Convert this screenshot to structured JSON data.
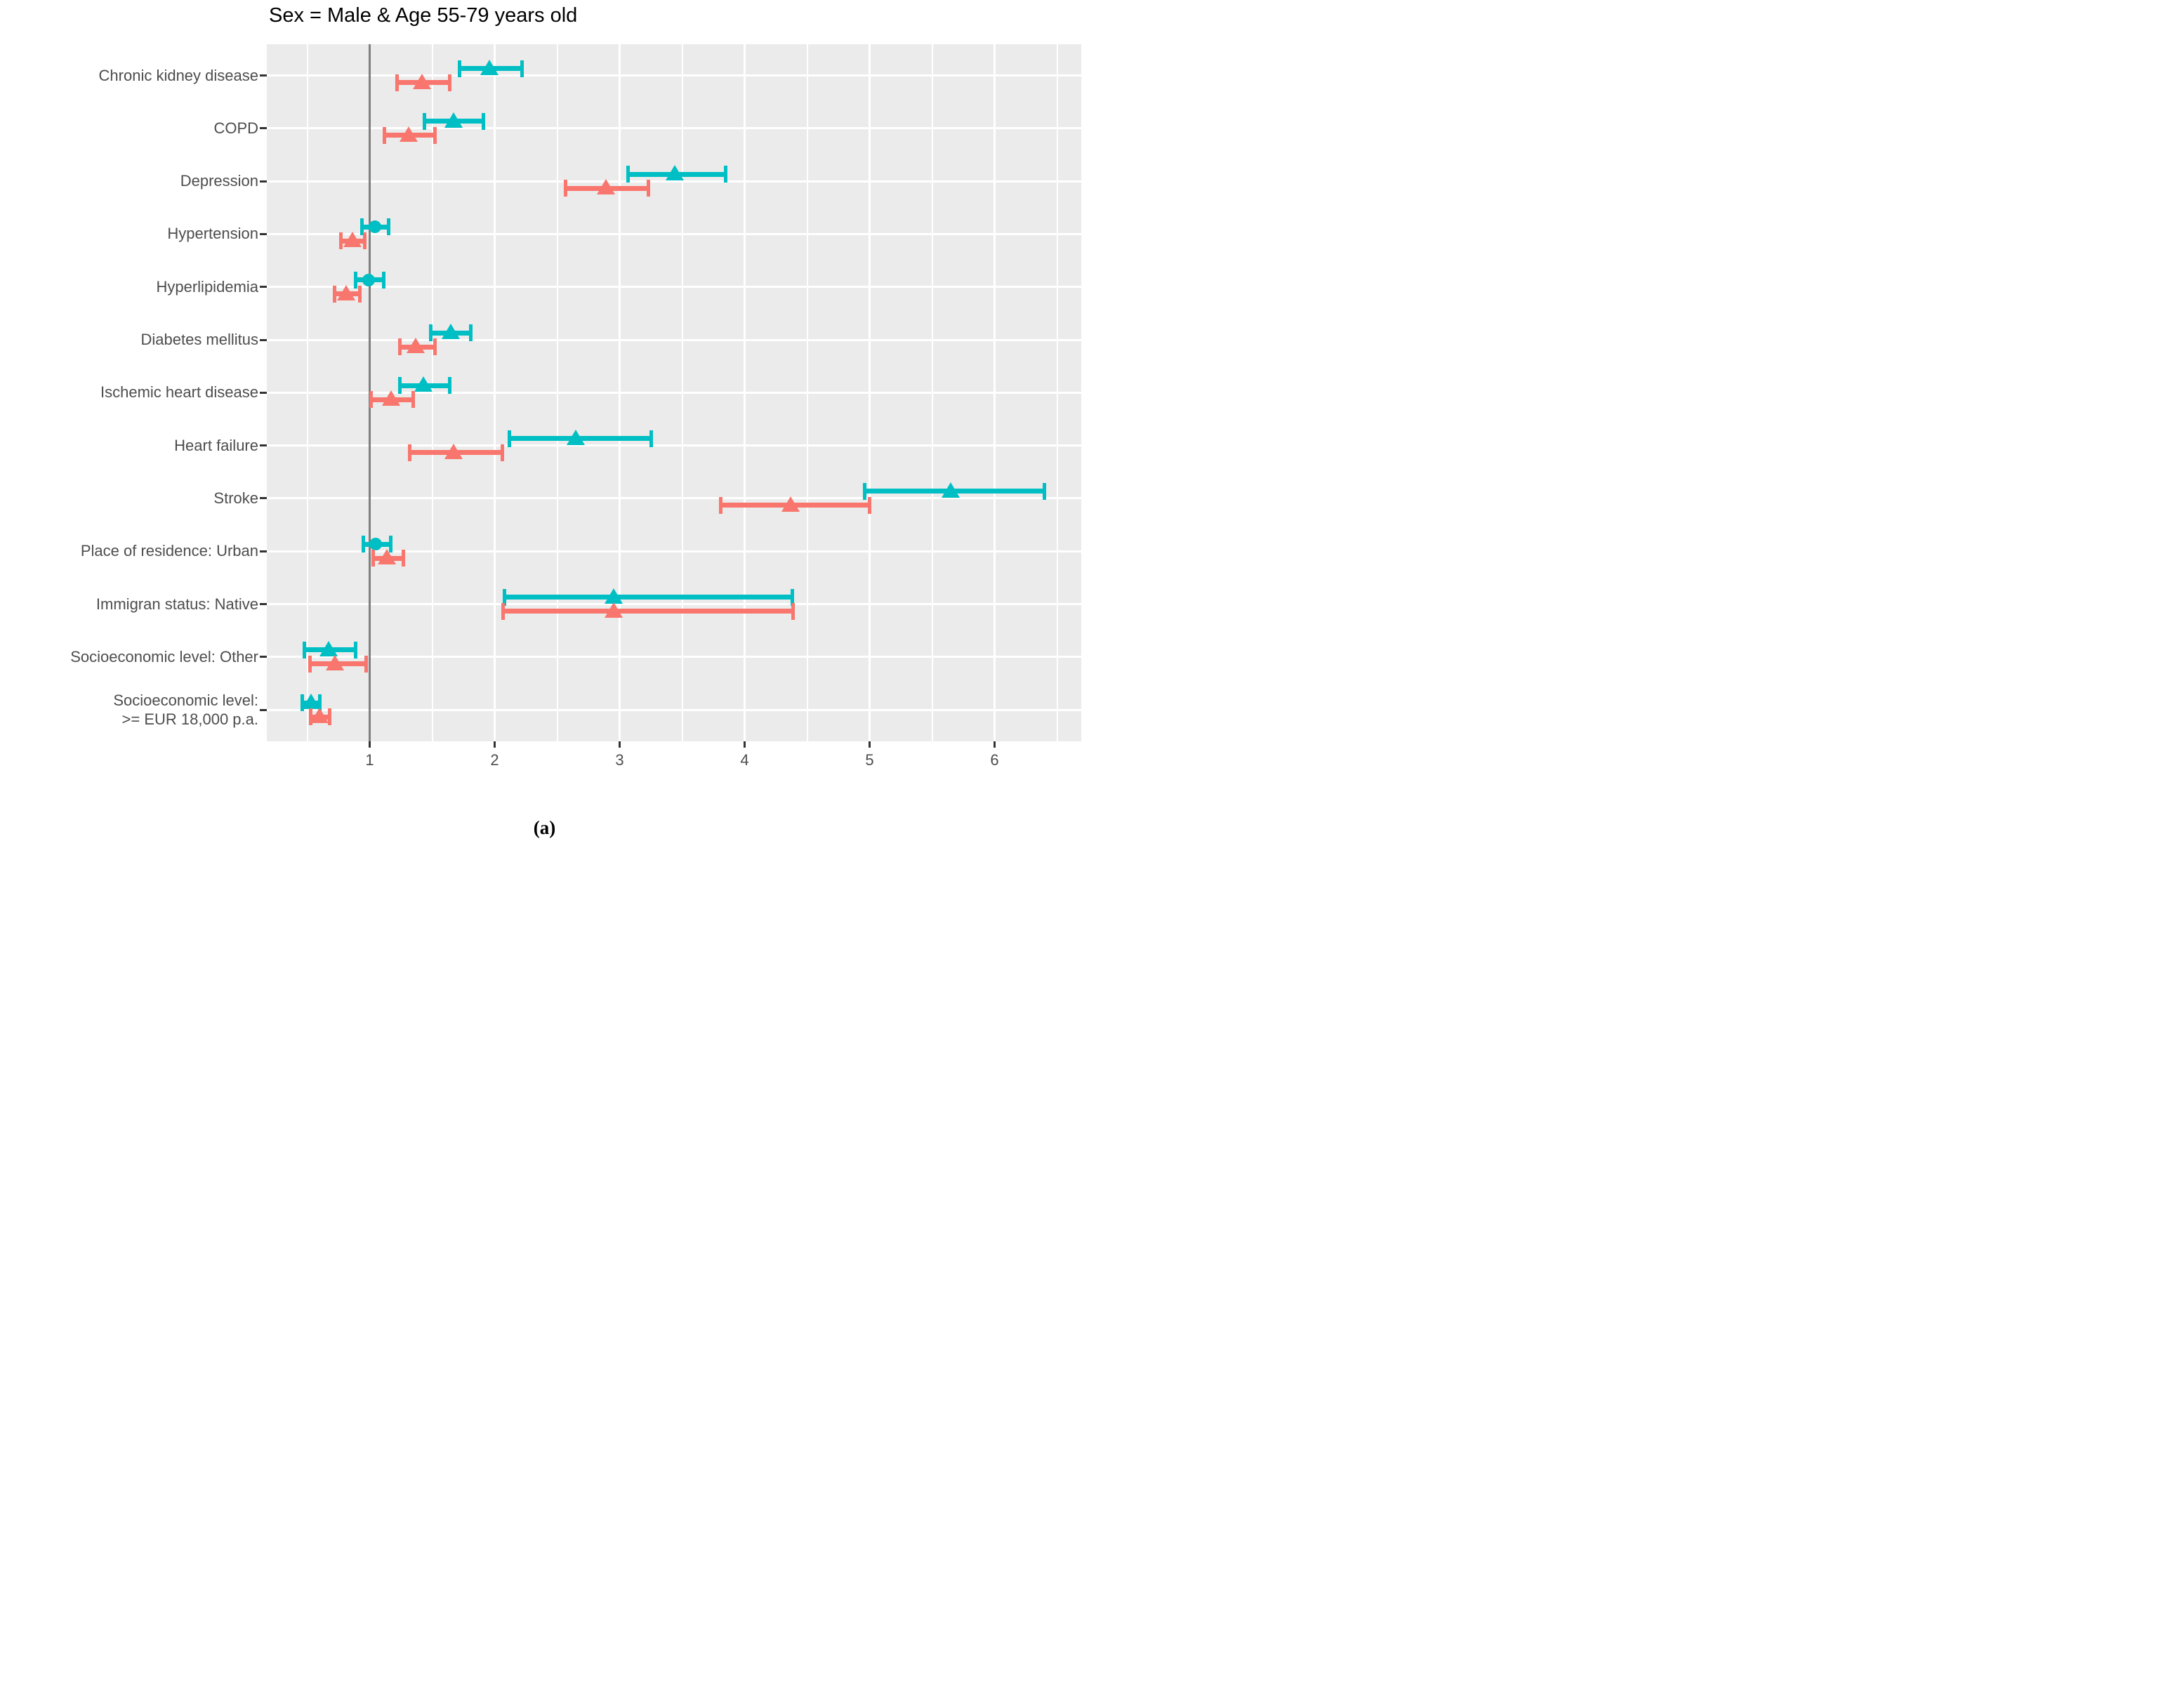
{
  "title": "Sex = Male & Age 55-79 years old",
  "caption": "(a)",
  "chart_data": {
    "type": "scatter",
    "subtype": "forest-plot-with-error-bars",
    "title": "Sex = Male & Age 55-79 years old",
    "xlabel": "",
    "ylabel": "",
    "x_axis": {
      "major_ticks": [
        1,
        2,
        3,
        4,
        5,
        6
      ],
      "minor_gridlines": [
        0.5,
        1.5,
        2.5,
        3.5,
        4.5,
        5.5,
        6.5
      ],
      "range": [
        0.18,
        6.69
      ],
      "reference_line_x": 1
    },
    "grid": "on",
    "legend_position": "none",
    "panel_background": "#EBEBEB",
    "gridline_color": "#FFFFFF",
    "reference_line_color": "#7F7F7F",
    "categories": [
      "Chronic kidney disease",
      "COPD",
      "Depression",
      "Hypertension",
      "Hyperlipidemia",
      "Diabetes mellitus",
      "Ischemic heart disease",
      "Heart failure",
      "Stroke",
      "Place of residence: Urban",
      "Immigran status: Native",
      "Socioeconomic level: Other",
      "Socioeconomic level:\n>= EUR 18,000 p.a."
    ],
    "series": [
      {
        "name": "group-teal",
        "color": "#00BFC4",
        "points": [
          {
            "category": "Chronic kidney disease",
            "est": 1.96,
            "lo": 1.72,
            "hi": 2.22,
            "marker": "triangle"
          },
          {
            "category": "COPD",
            "est": 1.67,
            "lo": 1.44,
            "hi": 1.91,
            "marker": "triangle"
          },
          {
            "category": "Depression",
            "est": 3.44,
            "lo": 3.07,
            "hi": 3.85,
            "marker": "triangle"
          },
          {
            "category": "Hypertension",
            "est": 1.04,
            "lo": 0.94,
            "hi": 1.15,
            "marker": "circle"
          },
          {
            "category": "Hyperlipidemia",
            "est": 0.99,
            "lo": 0.89,
            "hi": 1.11,
            "marker": "circle"
          },
          {
            "category": "Diabetes mellitus",
            "est": 1.65,
            "lo": 1.49,
            "hi": 1.81,
            "marker": "triangle"
          },
          {
            "category": "Ischemic heart disease",
            "est": 1.43,
            "lo": 1.24,
            "hi": 1.64,
            "marker": "triangle"
          },
          {
            "category": "Heart failure",
            "est": 2.65,
            "lo": 2.12,
            "hi": 3.25,
            "marker": "triangle"
          },
          {
            "category": "Stroke",
            "est": 5.65,
            "lo": 4.96,
            "hi": 6.4,
            "marker": "triangle"
          },
          {
            "category": "Place of residence: Urban",
            "est": 1.05,
            "lo": 0.95,
            "hi": 1.17,
            "marker": "circle"
          },
          {
            "category": "Immigran status: Native",
            "est": 2.95,
            "lo": 2.08,
            "hi": 4.38,
            "marker": "triangle"
          },
          {
            "category": "Socioeconomic level: Other",
            "est": 0.67,
            "lo": 0.48,
            "hi": 0.89,
            "marker": "triangle"
          },
          {
            "category": "Socioeconomic level: >= EUR 18,000 p.a.",
            "est": 0.53,
            "lo": 0.46,
            "hi": 0.6,
            "marker": "triangle"
          }
        ]
      },
      {
        "name": "group-salmon",
        "color": "#F8766D",
        "points": [
          {
            "category": "Chronic kidney disease",
            "est": 1.42,
            "lo": 1.22,
            "hi": 1.64,
            "marker": "triangle"
          },
          {
            "category": "COPD",
            "est": 1.31,
            "lo": 1.12,
            "hi": 1.52,
            "marker": "triangle"
          },
          {
            "category": "Depression",
            "est": 2.89,
            "lo": 2.57,
            "hi": 3.23,
            "marker": "triangle"
          },
          {
            "category": "Hypertension",
            "est": 0.86,
            "lo": 0.77,
            "hi": 0.96,
            "marker": "triangle"
          },
          {
            "category": "Hyperlipidemia",
            "est": 0.81,
            "lo": 0.72,
            "hi": 0.92,
            "marker": "triangle"
          },
          {
            "category": "Diabetes mellitus",
            "est": 1.37,
            "lo": 1.24,
            "hi": 1.52,
            "marker": "triangle"
          },
          {
            "category": "Ischemic heart disease",
            "est": 1.17,
            "lo": 1.01,
            "hi": 1.35,
            "marker": "triangle"
          },
          {
            "category": "Heart failure",
            "est": 1.67,
            "lo": 1.32,
            "hi": 2.06,
            "marker": "triangle"
          },
          {
            "category": "Stroke",
            "est": 4.37,
            "lo": 3.81,
            "hi": 5.0,
            "marker": "triangle"
          },
          {
            "category": "Place of residence: Urban",
            "est": 1.14,
            "lo": 1.03,
            "hi": 1.27,
            "marker": "triangle"
          },
          {
            "category": "Immigran status: Native",
            "est": 2.95,
            "lo": 2.07,
            "hi": 4.39,
            "marker": "triangle"
          },
          {
            "category": "Socioeconomic level: Other",
            "est": 0.72,
            "lo": 0.52,
            "hi": 0.97,
            "marker": "triangle"
          },
          {
            "category": "Socioeconomic level: >= EUR 18,000 p.a.",
            "est": 0.6,
            "lo": 0.53,
            "hi": 0.68,
            "marker": "triangle"
          }
        ]
      }
    ]
  }
}
